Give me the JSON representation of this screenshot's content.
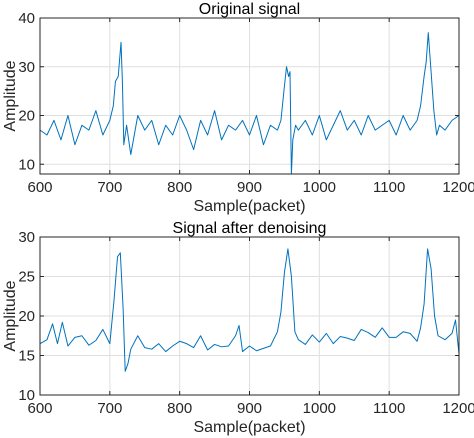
{
  "chart_data": [
    {
      "type": "line",
      "title": "Original signal",
      "xlabel": "Sample(packet)",
      "ylabel": "Amplitude",
      "xlim": [
        600,
        1200
      ],
      "ylim": [
        8,
        40
      ],
      "xticks": [
        600,
        700,
        800,
        900,
        1000,
        1100,
        1200
      ],
      "yticks": [
        10,
        20,
        30,
        40
      ],
      "grid": true,
      "line_color": "#0072BD",
      "series": [
        {
          "x": [
            600,
            610,
            620,
            630,
            640,
            650,
            660,
            670,
            680,
            690,
            700,
            705,
            708,
            712,
            716,
            718,
            720,
            724,
            730,
            740,
            750,
            760,
            770,
            780,
            790,
            800,
            810,
            820,
            830,
            840,
            850,
            860,
            870,
            880,
            890,
            900,
            910,
            920,
            930,
            940,
            945,
            950,
            953,
            956,
            958,
            960,
            962,
            966,
            970,
            980,
            990,
            1000,
            1010,
            1020,
            1030,
            1040,
            1050,
            1060,
            1070,
            1080,
            1090,
            1100,
            1110,
            1120,
            1130,
            1140,
            1145,
            1150,
            1153,
            1156,
            1160,
            1164,
            1168,
            1172,
            1180,
            1190,
            1200
          ],
          "values": [
            17,
            16,
            19,
            15,
            20,
            14,
            18,
            17,
            21,
            16,
            19,
            22,
            27,
            28,
            35,
            27,
            14,
            18,
            12,
            20,
            17,
            19,
            14,
            18,
            16,
            20,
            17,
            13,
            19,
            16,
            21,
            15,
            18,
            17,
            19,
            16,
            20,
            14,
            18,
            17,
            19,
            26,
            30,
            28,
            29,
            8,
            15,
            18,
            17,
            19,
            16,
            20,
            15,
            18,
            21,
            17,
            19,
            16,
            20,
            17,
            18,
            19,
            16,
            20,
            17,
            19,
            22,
            28,
            31,
            37,
            29,
            21,
            16,
            18,
            17,
            19,
            20
          ]
        }
      ]
    },
    {
      "type": "line",
      "title": "Signal after denoising",
      "xlabel": "Sample(packet)",
      "ylabel": "Amplitude",
      "xlim": [
        600,
        1200
      ],
      "ylim": [
        10,
        30
      ],
      "xticks": [
        600,
        700,
        800,
        900,
        1000,
        1100,
        1200
      ],
      "yticks": [
        10,
        15,
        20,
        25,
        30
      ],
      "grid": true,
      "line_color": "#0072BD",
      "series": [
        {
          "x": [
            600,
            610,
            618,
            625,
            632,
            640,
            650,
            660,
            670,
            680,
            690,
            700,
            706,
            711,
            715,
            719,
            722,
            726,
            730,
            740,
            750,
            760,
            770,
            780,
            790,
            800,
            810,
            820,
            830,
            840,
            850,
            860,
            870,
            880,
            885,
            890,
            900,
            910,
            920,
            930,
            940,
            945,
            950,
            955,
            960,
            965,
            970,
            980,
            990,
            1000,
            1010,
            1020,
            1030,
            1040,
            1050,
            1060,
            1070,
            1080,
            1090,
            1100,
            1110,
            1120,
            1130,
            1140,
            1145,
            1150,
            1155,
            1160,
            1165,
            1170,
            1180,
            1190,
            1195,
            1200
          ],
          "values": [
            16.5,
            17,
            19,
            16.5,
            19.2,
            16.2,
            17.3,
            17.5,
            16.3,
            16.9,
            18.3,
            16.5,
            22,
            27.5,
            28,
            21,
            13,
            14,
            15.8,
            17.5,
            16,
            15.8,
            16.5,
            15.5,
            16.2,
            16.8,
            16.5,
            16,
            17.5,
            15.7,
            16.4,
            16.1,
            16.2,
            17.5,
            18.8,
            15.5,
            16.2,
            15.6,
            15.9,
            16.2,
            18,
            20.5,
            25.5,
            28.5,
            25,
            18,
            17,
            16.4,
            17.6,
            16.7,
            17.8,
            16.5,
            17.4,
            17.2,
            16.9,
            18.3,
            17.9,
            17.3,
            18.5,
            17.3,
            17.3,
            18,
            17.8,
            16.8,
            18.5,
            21.5,
            28.5,
            26,
            20,
            17.5,
            17,
            17.8,
            19.5,
            15.2
          ]
        }
      ]
    }
  ]
}
